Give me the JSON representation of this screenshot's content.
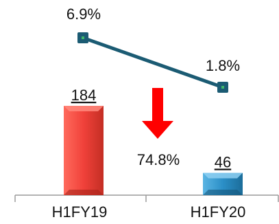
{
  "chart_data": {
    "type": "bar",
    "categories": [
      "H1FY19",
      "H1FY20"
    ],
    "series": [
      {
        "values": [
          184,
          46
        ],
        "colors": [
          "#f0413a",
          "#2b8fc7"
        ]
      }
    ],
    "line_series": {
      "values": [
        6.9,
        1.8
      ],
      "labels": [
        "6.9%",
        "1.8%"
      ],
      "color": "#1b5b73",
      "marker_color": "#1b5b73"
    },
    "bar_labels": [
      "184",
      "46"
    ],
    "change_label": "74.8%",
    "change_arrow_color": "#ff0000",
    "xlabel": "",
    "ylabel": ""
  }
}
